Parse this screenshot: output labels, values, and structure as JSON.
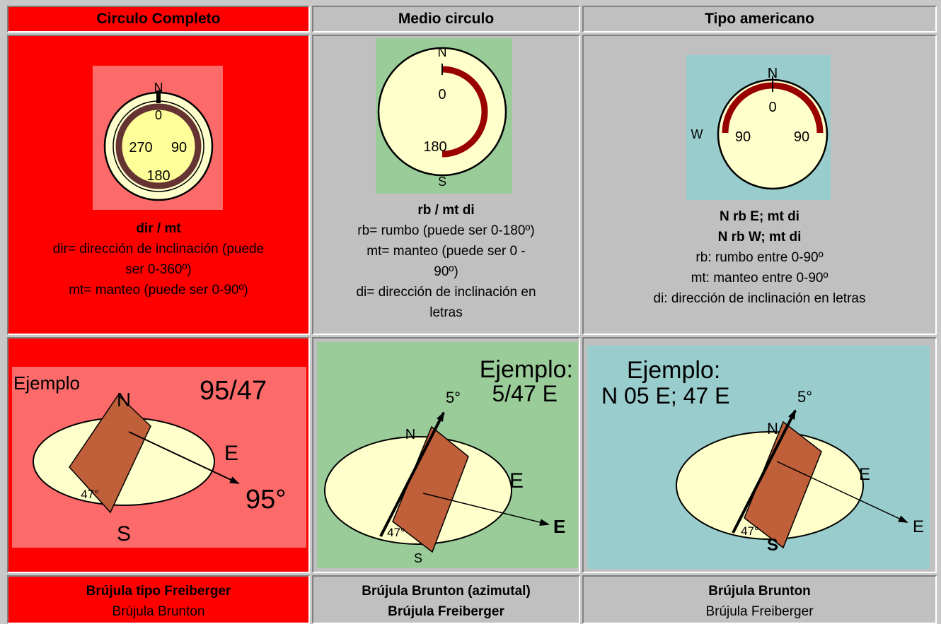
{
  "columns": [
    {
      "header": "Circulo Completo",
      "compass": {
        "n": "N",
        "top": "0",
        "left": "270",
        "right": "90",
        "bottom": "180"
      },
      "notation": "dir / mt",
      "desc": [
        "dir= dirección de inclinación (puede",
        "ser 0-360º)",
        "mt= manteo (puede ser 0-90º)"
      ],
      "example": {
        "label": "Ejemplo",
        "value": "95/47",
        "n": "N",
        "e": "E",
        "s": "S",
        "dip": "47°",
        "azimuth": "95°"
      },
      "footer": {
        "primary": "Brújula tipo Freiberger",
        "secondary": "Brújula Brunton"
      }
    },
    {
      "header": "Medio circulo",
      "compass": {
        "n": "N",
        "top": "0",
        "bottom": "180",
        "s": "S"
      },
      "notation": "rb / mt di",
      "desc": [
        "rb= rumbo (puede ser 0-180º)",
        "mt= manteo (puede ser 0 -",
        "90º)",
        "di= dirección de inclinación en",
        "letras"
      ],
      "example": {
        "label": "Ejemplo:",
        "value": "5/47 E",
        "strike": "5°",
        "n": "N",
        "e": "E",
        "arrow_e": "E",
        "s": "S",
        "dip": "47°"
      },
      "footer": {
        "primary": "Brújula Brunton (azimutal)",
        "secondary": "Brújula Freiberger"
      }
    },
    {
      "header": "Tipo americano",
      "compass": {
        "n": "N",
        "w": "W",
        "top": "0",
        "left": "90",
        "right": "90"
      },
      "notation": [
        "N rb E; mt di",
        "N rb W; mt di"
      ],
      "desc": [
        "rb: rumbo entre 0-90º",
        "mt: manteo entre 0-90º",
        "di: dirección de inclinación en letras"
      ],
      "example": {
        "label": "Ejemplo:",
        "value": "N 05 E; 47 E",
        "strike": "5°",
        "n": "N",
        "e": "E",
        "arrow_e": "E",
        "s": "S",
        "dip": "47°"
      },
      "footer": {
        "primary": "Brújula Brunton",
        "secondary": "Brújula Freiberger"
      }
    }
  ],
  "colors": {
    "red": "#ff0000",
    "pink": "#fd6a6a",
    "green": "#99cc99",
    "teal": "#99cccc",
    "grey": "#c0c0c0",
    "cream": "#ffffcc",
    "ring": "#663333",
    "arc": "#990000",
    "plane": "#c0603a"
  }
}
